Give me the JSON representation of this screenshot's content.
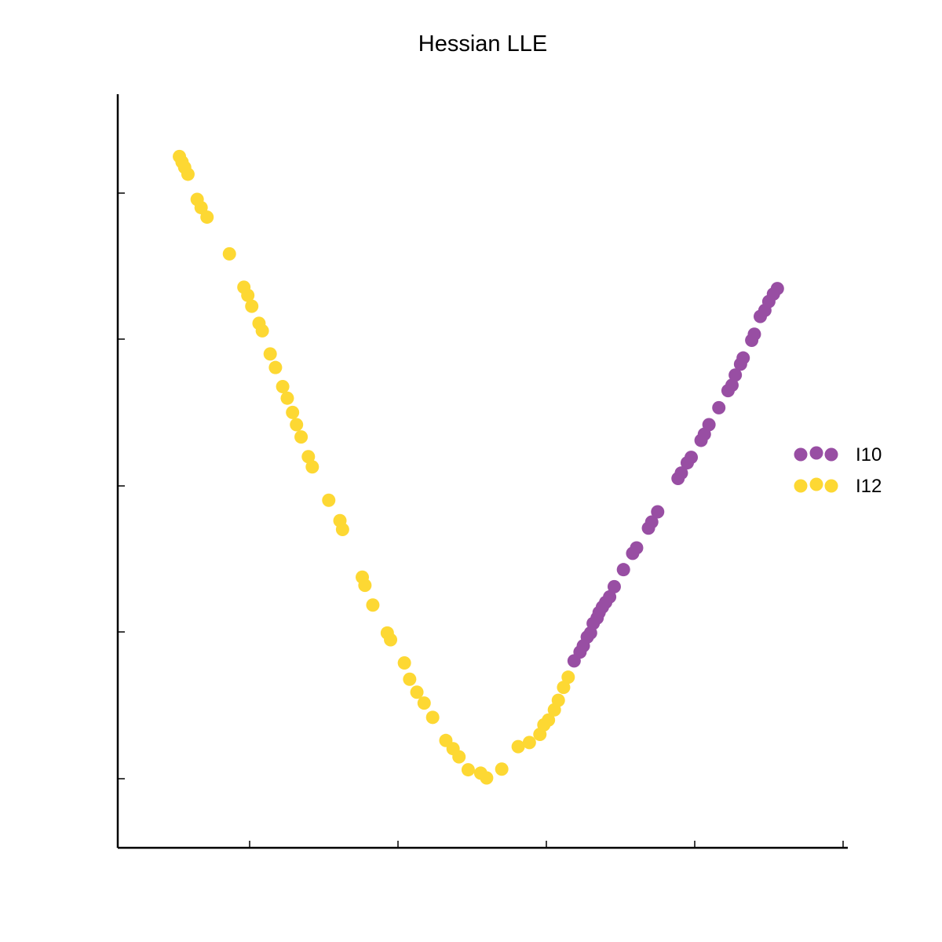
{
  "chart_data": {
    "type": "scatter",
    "title": "Hessian LLE",
    "xlabel": "",
    "ylabel": "",
    "xlim": [
      0,
      100
    ],
    "ylim": [
      0,
      100
    ],
    "grid": false,
    "legend_position": "right",
    "show_tick_labels": false,
    "series": [
      {
        "name": "I10",
        "color": "#984ea3",
        "x": [
          64.6,
          65.5,
          66.0,
          66.6,
          67.1,
          67.5,
          68.1,
          68.4,
          68.9,
          69.4,
          70.0,
          70.7,
          72.1,
          73.5,
          74.1,
          75.9,
          76.4,
          77.3,
          80.4,
          80.9,
          81.8,
          82.4,
          83.9,
          84.4,
          85.1,
          86.6,
          88.0,
          88.6,
          89.1,
          89.9,
          90.3,
          91.6,
          92.0,
          92.9,
          93.6,
          94.2,
          94.9,
          95.5
        ],
        "y": [
          21.7,
          23.0,
          23.9,
          25.2,
          25.8,
          27.2,
          28.0,
          28.8,
          29.6,
          30.3,
          31.1,
          32.6,
          35.1,
          37.5,
          38.3,
          41.2,
          42.1,
          43.6,
          48.5,
          49.3,
          50.8,
          51.6,
          54.1,
          55.0,
          56.4,
          58.9,
          61.4,
          62.2,
          63.7,
          65.3,
          66.2,
          68.8,
          69.7,
          72.3,
          73.2,
          74.5,
          75.6,
          76.4
        ]
      },
      {
        "name": "I12",
        "color": "#fdd833",
        "x": [
          4.6,
          5.0,
          5.4,
          5.9,
          7.3,
          7.9,
          8.8,
          12.2,
          14.4,
          15.0,
          15.6,
          16.7,
          17.2,
          18.4,
          19.2,
          20.3,
          21.0,
          21.8,
          22.4,
          23.1,
          24.2,
          24.8,
          27.3,
          29.0,
          29.4,
          32.4,
          32.8,
          34.0,
          36.2,
          36.7,
          38.8,
          39.6,
          40.7,
          41.8,
          43.1,
          45.1,
          46.2,
          47.1,
          48.5,
          50.4,
          51.3,
          53.6,
          56.1,
          57.8,
          59.4,
          60.0,
          60.7,
          61.6,
          62.2,
          63.0,
          63.7
        ],
        "y": [
          95.8,
          95.0,
          94.2,
          93.2,
          89.5,
          88.3,
          86.9,
          81.5,
          76.6,
          75.4,
          73.8,
          71.3,
          70.2,
          66.8,
          64.8,
          62.0,
          60.3,
          58.2,
          56.4,
          54.6,
          51.7,
          50.2,
          45.3,
          42.3,
          41.0,
          34.0,
          32.8,
          29.9,
          25.8,
          24.8,
          21.4,
          19.0,
          17.1,
          15.5,
          13.4,
          10.0,
          8.8,
          7.6,
          5.7,
          5.2,
          4.5,
          5.8,
          9.1,
          9.7,
          10.9,
          12.3,
          13.0,
          14.5,
          15.9,
          17.8,
          19.3
        ]
      }
    ]
  }
}
